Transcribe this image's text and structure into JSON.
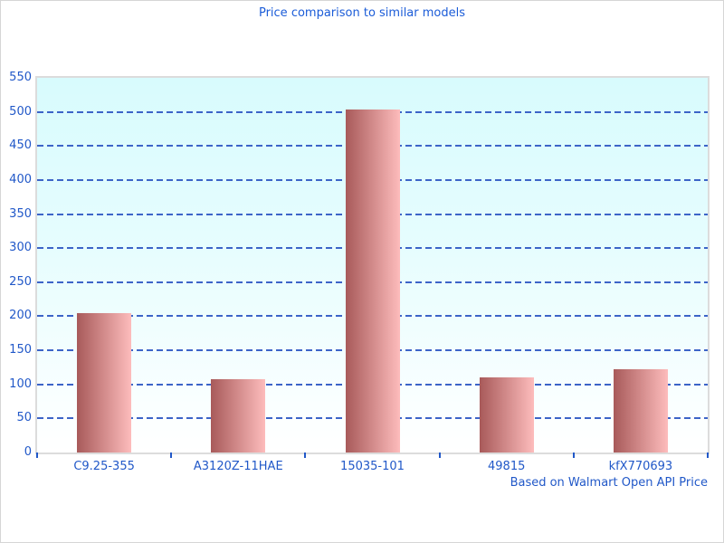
{
  "chart_data": {
    "type": "bar",
    "title": "Price comparison to similar models",
    "categories": [
      "C9.25-355",
      "A3120Z-11HAE",
      "15035-101",
      "49815",
      "kfX770693"
    ],
    "values": [
      205,
      107,
      504,
      110,
      122
    ],
    "xlabel": "",
    "ylabel": "",
    "ylim": [
      0,
      550
    ],
    "ytick_step": 50,
    "grid": "horizontal dashed, every 50 units",
    "legend": "none",
    "footnote": "Based on Walmart Open API Price",
    "colors": {
      "title_text": "#1b5cd8",
      "axis_text": "#2158c8",
      "gridline": "#3c64c8",
      "bar_gradient_left": "#a85a5a",
      "bar_gradient_right": "#fdbcbc",
      "plot_bg_top": "#d8fbfd",
      "plot_bg_bottom": "#ffffff",
      "plot_border": "#dcdcdc"
    }
  }
}
